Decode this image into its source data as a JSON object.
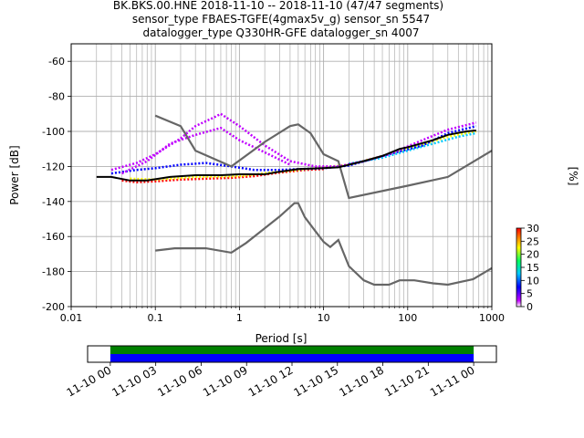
{
  "chart_data": {
    "type": "ppsd",
    "title_lines": [
      "BK.BKS.00.HNE   2018-11-10 -- 2018-11-10  (47/47 segments)",
      "sensor_type FBAES-TGFE(4gmax5v_g) sensor_sn 5547",
      "datalogger_type Q330HR-GFE datalogger_sn 4007"
    ],
    "xlabel": "Period [s]",
    "ylabel": "Power [dB]",
    "x_scale": "log",
    "xlim": [
      0.01,
      1000
    ],
    "ylim": [
      -200,
      -50
    ],
    "grid": true,
    "x_ticks": [
      "0.01",
      "0.1",
      "1",
      "10",
      "100",
      "1000"
    ],
    "y_ticks": [
      "-60",
      "-80",
      "-100",
      "-120",
      "-140",
      "-160",
      "-180",
      "-200"
    ],
    "colorbar": {
      "label": "[%]",
      "range": [
        0,
        30
      ],
      "ticks": [
        "0",
        "5",
        "10",
        "15",
        "20",
        "25",
        "30"
      ],
      "colors": [
        "#ffffff",
        "#c000ff",
        "#0000ff",
        "#00c8ff",
        "#00ff60",
        "#ffff00",
        "#ff8000",
        "#ff0000"
      ]
    },
    "series": [
      {
        "role": "noise_model_high",
        "color": "#666666",
        "points": [
          [
            0.1,
            -91
          ],
          [
            0.2,
            -97
          ],
          [
            0.3,
            -111
          ],
          [
            0.8,
            -120
          ],
          [
            2,
            -106
          ],
          [
            4,
            -97
          ],
          [
            5,
            -96
          ],
          [
            7,
            -101
          ],
          [
            10,
            -113
          ],
          [
            15,
            -117
          ],
          [
            20,
            -138
          ],
          [
            100,
            -131
          ],
          [
            300,
            -126
          ],
          [
            1000,
            -111
          ]
        ]
      },
      {
        "role": "noise_model_low",
        "color": "#666666",
        "points": [
          [
            0.1,
            -168
          ],
          [
            0.17,
            -166.7
          ],
          [
            0.4,
            -166.7
          ],
          [
            0.8,
            -169.2
          ],
          [
            1.2,
            -163.7
          ],
          [
            3,
            -148.6
          ],
          [
            4.5,
            -141
          ],
          [
            5,
            -141
          ],
          [
            6,
            -149
          ],
          [
            8,
            -157
          ],
          [
            10,
            -163
          ],
          [
            12,
            -166
          ],
          [
            15,
            -162
          ],
          [
            20,
            -177
          ],
          [
            30,
            -185
          ],
          [
            40,
            -187.5
          ],
          [
            60,
            -187.5
          ],
          [
            80,
            -185
          ],
          [
            120,
            -185
          ],
          [
            200,
            -186.7
          ],
          [
            300,
            -187.5
          ],
          [
            600,
            -184.4
          ],
          [
            1000,
            -178
          ]
        ]
      },
      {
        "role": "mode",
        "color": "#000000",
        "points": [
          [
            0.02,
            -126
          ],
          [
            0.03,
            -126
          ],
          [
            0.05,
            -128
          ],
          [
            0.08,
            -128
          ],
          [
            0.15,
            -126
          ],
          [
            0.3,
            -125
          ],
          [
            0.6,
            -125
          ],
          [
            1,
            -124.5
          ],
          [
            2,
            -124.5
          ],
          [
            3,
            -123
          ],
          [
            5,
            -121.5
          ],
          [
            10,
            -121
          ],
          [
            15,
            -120.5
          ],
          [
            20,
            -119
          ],
          [
            30,
            -117
          ],
          [
            50,
            -114
          ],
          [
            80,
            -110
          ],
          [
            100,
            -109
          ],
          [
            200,
            -105
          ],
          [
            300,
            -102
          ],
          [
            500,
            -100
          ],
          [
            650,
            -99.5
          ]
        ]
      }
    ],
    "histogram_percent_bands": [
      {
        "color": "#ff0000",
        "points": [
          [
            0.04,
            -128
          ],
          [
            0.06,
            -129
          ],
          [
            0.1,
            -128.5
          ],
          [
            0.2,
            -127.5
          ],
          [
            0.4,
            -127
          ],
          [
            0.8,
            -126.5
          ],
          [
            1.5,
            -125.5
          ],
          [
            3,
            -123.5
          ],
          [
            6,
            -122
          ],
          [
            10,
            -121.5
          ]
        ]
      },
      {
        "color": "#ffff00",
        "points": [
          [
            0.05,
            -127
          ],
          [
            0.1,
            -127.5
          ],
          [
            0.3,
            -126
          ],
          [
            1,
            -125.5
          ],
          [
            3,
            -123
          ],
          [
            8,
            -121
          ],
          [
            20,
            -119
          ],
          [
            50,
            -114
          ],
          [
            100,
            -110
          ],
          [
            300,
            -103
          ],
          [
            650,
            -100
          ]
        ]
      },
      {
        "color": "#00c8ff",
        "points": [
          [
            20,
            -118.5
          ],
          [
            50,
            -115
          ],
          [
            100,
            -111
          ],
          [
            200,
            -107
          ],
          [
            400,
            -103
          ],
          [
            650,
            -101
          ]
        ]
      },
      {
        "color": "#0000ff",
        "points": [
          [
            0.03,
            -124
          ],
          [
            0.06,
            -122
          ],
          [
            0.1,
            -121
          ],
          [
            0.2,
            -119
          ],
          [
            0.4,
            -118
          ],
          [
            0.8,
            -120
          ],
          [
            1.5,
            -122
          ],
          [
            3,
            -122
          ],
          [
            10,
            -121
          ],
          [
            20,
            -119.5
          ],
          [
            60,
            -113
          ],
          [
            150,
            -108
          ],
          [
            300,
            -101
          ],
          [
            650,
            -97
          ]
        ]
      },
      {
        "color": "#c000ff",
        "points": [
          [
            0.03,
            -122
          ],
          [
            0.06,
            -118
          ],
          [
            0.1,
            -113
          ],
          [
            0.2,
            -104
          ],
          [
            0.3,
            -97
          ],
          [
            0.5,
            -92
          ],
          [
            0.6,
            -90
          ],
          [
            1,
            -97
          ],
          [
            2,
            -108
          ],
          [
            4,
            -117
          ],
          [
            8,
            -120
          ],
          [
            15,
            -120
          ],
          [
            30,
            -117
          ],
          [
            60,
            -113
          ],
          [
            150,
            -105
          ],
          [
            300,
            -99
          ],
          [
            650,
            -95
          ]
        ]
      },
      {
        "color": "#c000ff",
        "points": [
          [
            0.04,
            -124
          ],
          [
            0.08,
            -117
          ],
          [
            0.15,
            -107
          ],
          [
            0.3,
            -102
          ],
          [
            0.6,
            -98
          ],
          [
            1,
            -105
          ],
          [
            2,
            -112
          ],
          [
            4,
            -119
          ]
        ]
      }
    ],
    "timeline": {
      "ticks": [
        "11-10 00",
        "11-10 03",
        "11-10 06",
        "11-10 09",
        "11-10 12",
        "11-10 15",
        "11-10 18",
        "11-10 21",
        "11-11 00"
      ],
      "range_hours": [
        -1.5,
        25.5
      ],
      "coverage_hours": [
        0,
        24
      ],
      "bands": [
        {
          "color": "#008000"
        },
        {
          "color": "#0000ff"
        }
      ]
    }
  }
}
